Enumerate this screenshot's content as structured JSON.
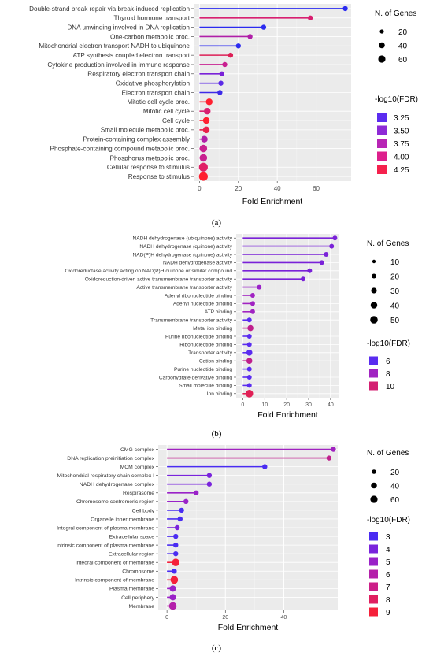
{
  "chart_data": [
    {
      "type": "lollipop",
      "caption": "(a)",
      "xlabel": "Fold Enrichment",
      "xlim": [
        -3,
        78
      ],
      "xticks": [
        0,
        20,
        40,
        60
      ],
      "grid": true,
      "legend_position": "right",
      "size_legend": {
        "title": "N. of Genes",
        "values": [
          "20",
          "40",
          "60"
        ]
      },
      "color_legend": {
        "title": "-log10(FDR)",
        "values": [
          "3.25",
          "3.50",
          "3.75",
          "4.00",
          "4.25"
        ],
        "colors": [
          "#5b2cf0",
          "#8e2ad6",
          "#b825b5",
          "#dd1f8c",
          "#f5214d"
        ]
      },
      "categories": [
        "Double-strand break repair via break-induced replication",
        "Thyroid hormone transport",
        "DNA unwinding involved in DNA replication",
        "One-carbon metabolic proc.",
        "Mitochondrial electron transport NADH to ubiquinone",
        "ATP synthesis coupled electron transport",
        "Cytokine production involved in immune response",
        "Respiratory electron transport chain",
        "Oxidative phosphorylation",
        "Electron transport chain",
        "Mitotic cell cycle proc.",
        "Mitotic cell cycle",
        "Cell cycle",
        "Small molecule metabolic proc.",
        "Protein-containing complex assembly",
        "Phosphate-containing compound metabolic proc.",
        "Phosphorus metabolic proc.",
        "Cellular response to stimulus",
        "Response to stimulus"
      ],
      "values": [
        75,
        57,
        33,
        26,
        20,
        16,
        13,
        11.5,
        11,
        10.5,
        5,
        4,
        3.5,
        3.5,
        2.5,
        2,
        2,
        2,
        2
      ],
      "colors": [
        "#2b2bf0",
        "#d81f70",
        "#2b2bf0",
        "#b01fa8",
        "#2b2bf0",
        "#dd1f56",
        "#c82090",
        "#7a22d8",
        "#5b2ae6",
        "#3d2be8",
        "#ff2030",
        "#d81f70",
        "#ff2030",
        "#e8204a",
        "#b01fa8",
        "#c82090",
        "#c82090",
        "#e01f66",
        "#ff2030"
      ],
      "sizes": [
        1,
        1,
        1,
        1,
        1,
        1,
        1,
        1,
        1,
        1,
        2,
        2,
        2,
        2,
        2,
        3,
        3,
        4,
        4
      ]
    },
    {
      "type": "lollipop",
      "caption": "(b)",
      "xlabel": "Fold Enrichment",
      "xlim": [
        -3,
        44
      ],
      "xticks": [
        0,
        10,
        20,
        30,
        40
      ],
      "grid": true,
      "legend_position": "right",
      "size_legend": {
        "title": "N. of Genes",
        "values": [
          "10",
          "20",
          "30",
          "40",
          "50"
        ]
      },
      "color_legend": {
        "title": "-log10(FDR)",
        "values": [
          "6",
          "8",
          "10"
        ],
        "colors": [
          "#5a2cf0",
          "#a123c2",
          "#d41f72"
        ]
      },
      "categories": [
        "NADH dehydrogenase (ubiquinone) activity",
        "NADH dehydrogenase (quinone) activity",
        "NAD(P)H dehydrogenase (quinone) activity",
        "NADH dehydrogenase activity",
        "Oxidoreductase activity acting on NAD(P)H quinone or similar compound",
        "Oxidoreduction-driven active transmembrane transporter activity",
        "Active transmembrane transporter activity",
        "Adenyl ribonucleotide binding",
        "Adenyl nucleotide binding",
        "ATP binding",
        "Transmembrane transporter activity",
        "Metal ion binding",
        "Purine ribonucleotide binding",
        "Ribonucleotide binding",
        "Transporter activity",
        "Cation binding",
        "Purine nucleotide binding",
        "Carbohydrate derivative binding",
        "Small molecule binding",
        "Ion binding"
      ],
      "values": [
        42,
        40.5,
        38,
        36,
        30.5,
        27.5,
        7.5,
        4.5,
        4.5,
        4.5,
        3,
        3.5,
        3,
        3,
        3,
        3,
        3,
        3,
        3,
        3
      ],
      "colors": [
        "#7a22d8",
        "#7a22d8",
        "#7a22d8",
        "#7a22d8",
        "#7a22d8",
        "#7a22d8",
        "#9a22c8",
        "#a123c2",
        "#a123c2",
        "#a123c2",
        "#5a2cf0",
        "#c01f8c",
        "#5a2cf0",
        "#5a2cf0",
        "#5a2cf0",
        "#c01f8c",
        "#5a2cf0",
        "#5a2cf0",
        "#5a2cf0",
        "#e01f55"
      ],
      "sizes": [
        1,
        1,
        1,
        1,
        1,
        1,
        1,
        1,
        1,
        1,
        1,
        2,
        1,
        1,
        2,
        2,
        1,
        1,
        1,
        3
      ]
    },
    {
      "type": "lollipop",
      "caption": "(c)",
      "xlabel": "Fold Enrichment",
      "xlim": [
        -3,
        58.5
      ],
      "xticks": [
        0,
        20,
        40
      ],
      "grid": true,
      "legend_position": "right",
      "size_legend": {
        "title": "N. of Genes",
        "values": [
          "20",
          "40",
          "60"
        ]
      },
      "color_legend": {
        "title": "-log10(FDR)",
        "values": [
          "3",
          "4",
          "5",
          "6",
          "7",
          "8",
          "9"
        ],
        "colors": [
          "#4a2cf2",
          "#7a24dc",
          "#9a22c8",
          "#b420aa",
          "#cc1f88",
          "#e01f60",
          "#f5203a"
        ]
      },
      "categories": [
        "CMG complex",
        "DNA replication preinitiation complex",
        "MCM complex",
        "Mitochondrial respiratory chain complex I",
        "NADH dehydrogenase complex",
        "Respirasome",
        "Chromosome centromeric region",
        "Cell body",
        "Organelle inner membrane",
        "Integral component of plasma membrane",
        "Extracellular space",
        "Intrinsic component of plasma membrane",
        "Extracellular region",
        "Integral component of membrane",
        "Chromosome",
        "Intrinsic component of membrane",
        "Plasma membrane",
        "Cell periphery",
        "Membrane"
      ],
      "values": [
        57,
        55.5,
        33.5,
        14.5,
        14.5,
        10,
        6.5,
        5,
        4.5,
        3.5,
        3,
        3,
        3,
        3,
        2.5,
        2.5,
        2,
        2,
        2
      ],
      "colors": [
        "#a022c0",
        "#c01f8c",
        "#4a2cf2",
        "#7a24dc",
        "#7a24dc",
        "#9a22c8",
        "#9a22c8",
        "#4a2cf2",
        "#4a2cf2",
        "#7a24dc",
        "#4a2cf2",
        "#4a2cf2",
        "#4a2cf2",
        "#f5203a",
        "#4a2cf2",
        "#f5203a",
        "#9a22c8",
        "#9a22c8",
        "#b420aa"
      ],
      "sizes": [
        1,
        1,
        1,
        1,
        1,
        1,
        1,
        1,
        1,
        1,
        1,
        1,
        1,
        3,
        1,
        3,
        2,
        2,
        3
      ]
    }
  ]
}
